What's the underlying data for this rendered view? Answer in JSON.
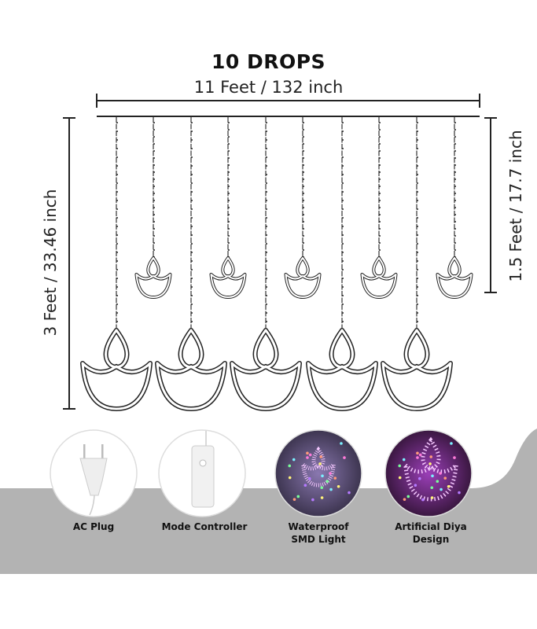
{
  "header": {
    "title": "10 DROPS",
    "width_label": "11 Feet / 132 inch"
  },
  "dimensions": {
    "total_height": "3 Feet / 33.46 inch",
    "short_drop_height": "1.5 Feet / 17.7 inch"
  },
  "drops": {
    "count": 10,
    "pattern": [
      "long",
      "short",
      "long",
      "short",
      "long",
      "short",
      "long",
      "short",
      "long",
      "short"
    ]
  },
  "features": [
    {
      "label": "AC Plug",
      "icon": "ac-plug-icon"
    },
    {
      "label": "Mode Controller",
      "icon": "mode-controller-icon"
    },
    {
      "label": "Waterproof\nSMD Light",
      "line1": "Waterproof",
      "line2": "SMD Light",
      "icon": "lit-diya-photo"
    },
    {
      "label": "Artificial Diya\nDesign",
      "line1": "Artificial Diya",
      "line2": "Design",
      "icon": "lit-diya-closeup-photo"
    }
  ],
  "colors": {
    "line": "#222222",
    "band": "#b3b3b3"
  }
}
